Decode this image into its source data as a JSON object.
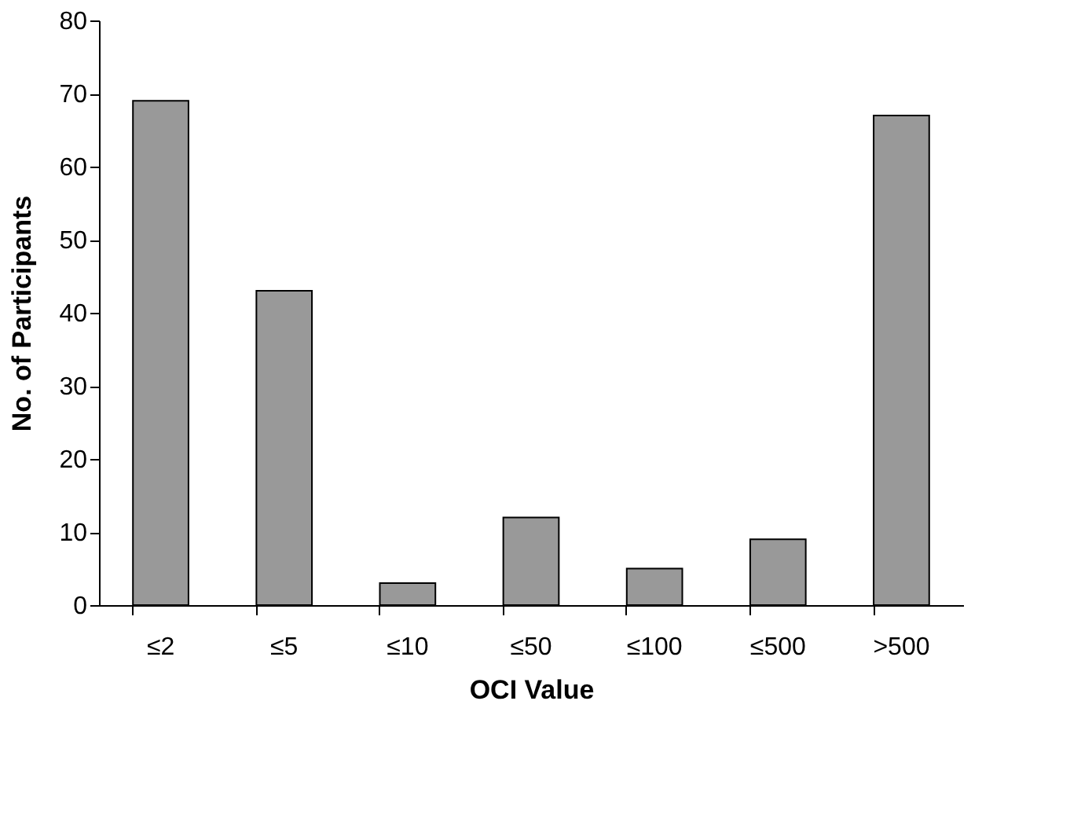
{
  "chart_data": {
    "type": "bar",
    "xlabel": "OCI Value",
    "ylabel": "No. of Participants",
    "categories": [
      "≤2",
      "≤5",
      "≤10",
      "≤50",
      "≤100",
      "≤500",
      ">500"
    ],
    "values": [
      69,
      43,
      3,
      12,
      5,
      9,
      67
    ],
    "color": "#999999",
    "ylim": [
      0,
      80
    ],
    "yticks": [
      0,
      10,
      20,
      30,
      40,
      50,
      60,
      70,
      80
    ],
    "grid": false
  }
}
